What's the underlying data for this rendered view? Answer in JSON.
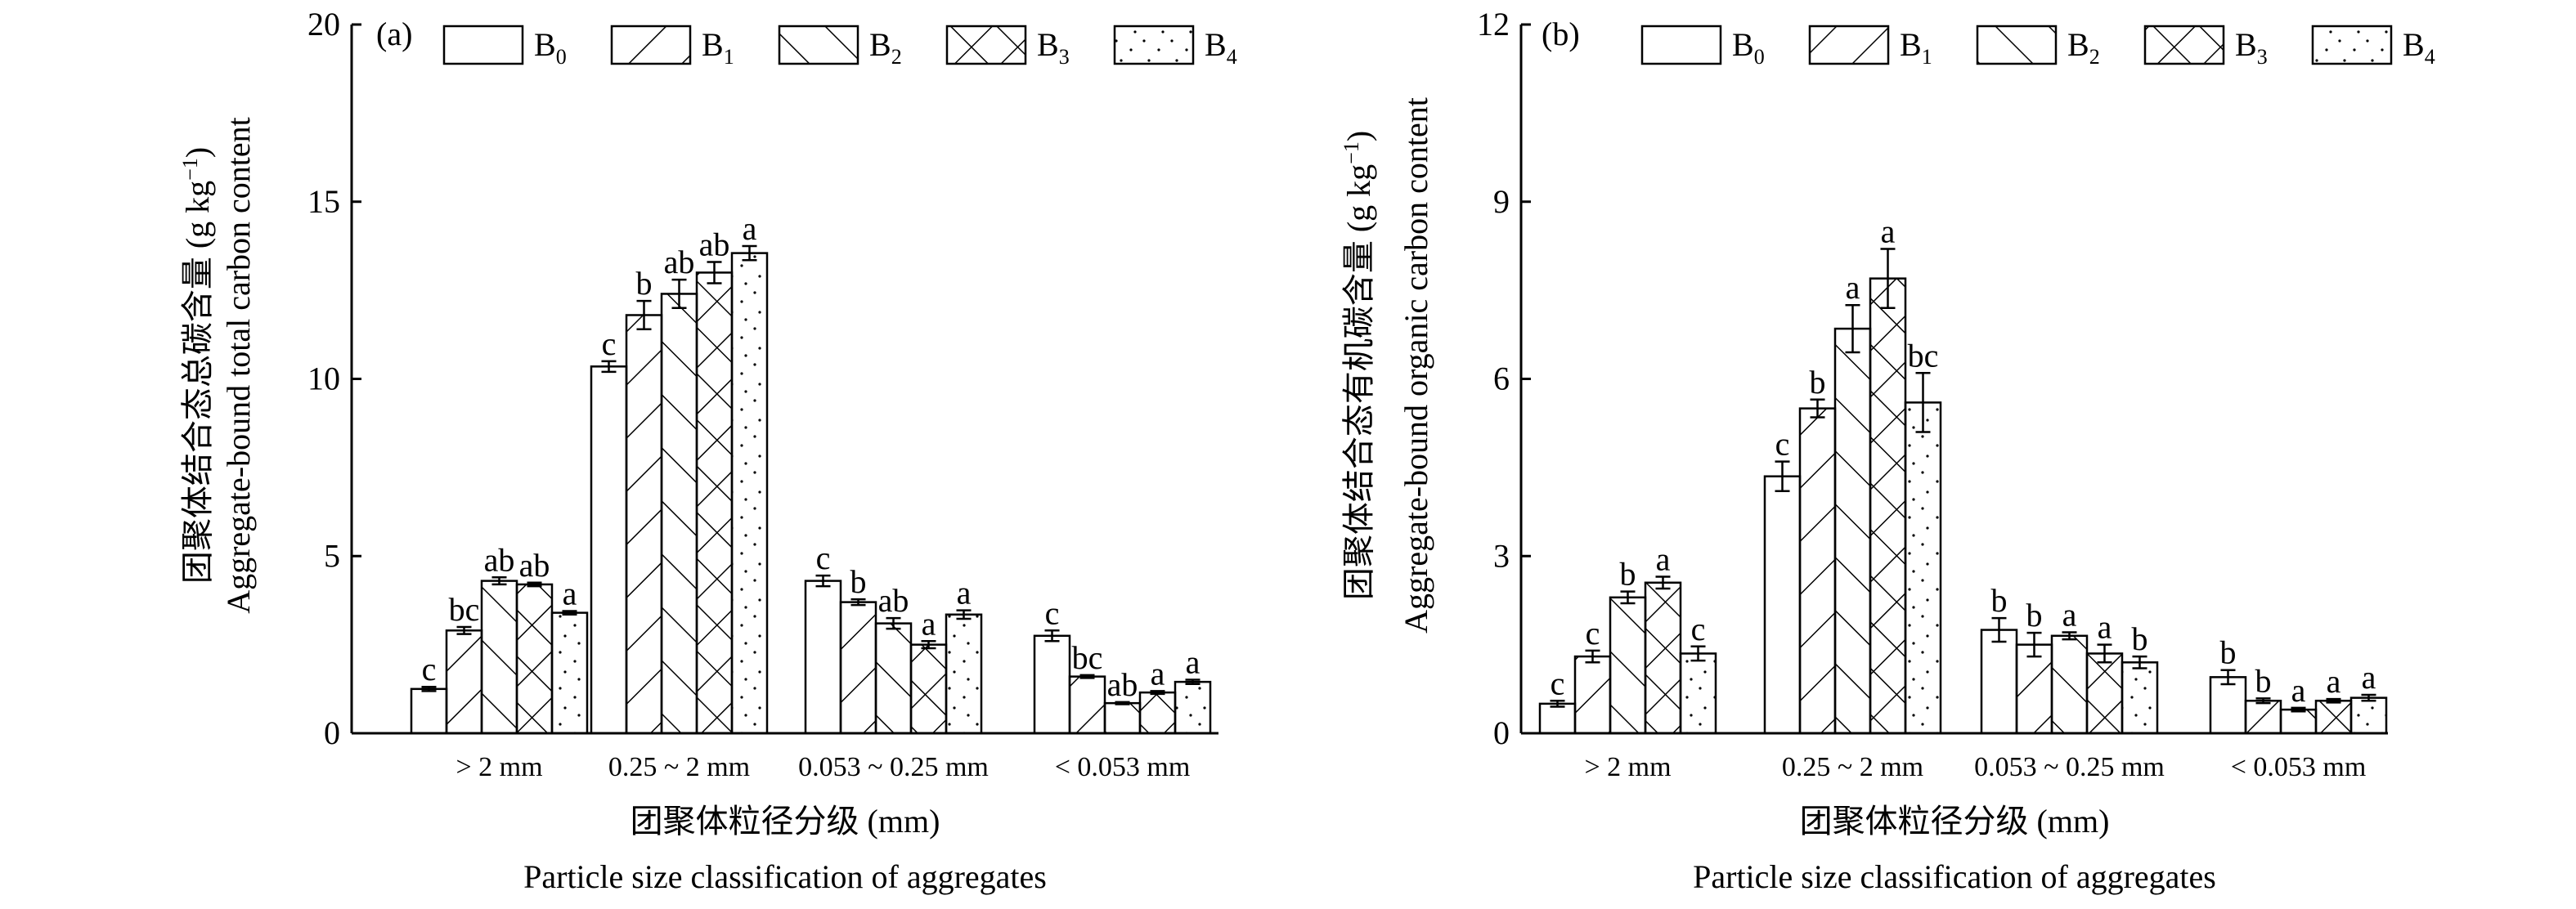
{
  "chart_data": [
    {
      "panel_label": "(a)",
      "type": "bar",
      "ylabel_cn": "团聚体结合态总碳含量 (g kg",
      "ylabel_en": "Aggregate-bound total carbon content",
      "ylabel_unit_sup": "−1",
      "ylabel_unit_close": ")",
      "xlabel_cn": "团聚体粒径分级 (mm)",
      "xlabel_en": "Particle size classification of aggregates",
      "ylim": [
        0,
        20
      ],
      "yticks": [
        "0",
        "5",
        "10",
        "15",
        "20"
      ],
      "categories": [
        "> 2 mm",
        "0.25 ~ 2 mm",
        "0.053 ~ 0.25 mm",
        "< 0.053 mm"
      ],
      "series": [
        {
          "name": "B",
          "sub": "0",
          "pattern": "blank",
          "values": [
            1.25,
            10.35,
            4.3,
            2.75
          ],
          "errors": [
            0.06,
            0.15,
            0.15,
            0.15
          ],
          "letters": [
            "c",
            "c",
            "c",
            "c"
          ]
        },
        {
          "name": "B",
          "sub": "1",
          "pattern": "slash",
          "values": [
            2.9,
            11.8,
            3.7,
            1.6
          ],
          "errors": [
            0.1,
            0.4,
            0.08,
            0.04
          ],
          "letters": [
            "bc",
            "b",
            "b",
            "bc"
          ]
        },
        {
          "name": "B",
          "sub": "2",
          "pattern": "backslash",
          "values": [
            4.3,
            12.4,
            3.1,
            0.85
          ],
          "errors": [
            0.1,
            0.4,
            0.15,
            0.03
          ],
          "letters": [
            "ab",
            "ab",
            "ab",
            "ab"
          ]
        },
        {
          "name": "B",
          "sub": "3",
          "pattern": "cross",
          "values": [
            4.2,
            13.0,
            2.5,
            1.15
          ],
          "errors": [
            0.05,
            0.3,
            0.1,
            0.04
          ],
          "letters": [
            "ab",
            "ab",
            "a",
            "a"
          ]
        },
        {
          "name": "B",
          "sub": "4",
          "pattern": "dots",
          "values": [
            3.4,
            13.55,
            3.35,
            1.45
          ],
          "errors": [
            0.05,
            0.2,
            0.12,
            0.06
          ],
          "letters": [
            "a",
            "a",
            "a",
            "a"
          ]
        }
      ]
    },
    {
      "panel_label": "(b)",
      "type": "bar",
      "ylabel_cn": "团聚体结合态有机碳含量 (g kg",
      "ylabel_en": "Aggregate-bound organic carbon content",
      "ylabel_unit_sup": "−1",
      "ylabel_unit_close": ")",
      "xlabel_cn": "团聚体粒径分级 (mm)",
      "xlabel_en": "Particle size classification of aggregates",
      "ylim": [
        0,
        12
      ],
      "yticks": [
        "0",
        "3",
        "6",
        "9",
        "12"
      ],
      "categories": [
        "> 2 mm",
        "0.25 ~ 2 mm",
        "0.053 ~ 0.25 mm",
        "< 0.053 mm"
      ],
      "series": [
        {
          "name": "B",
          "sub": "0",
          "pattern": "blank",
          "values": [
            0.5,
            4.35,
            1.75,
            0.95
          ],
          "errors": [
            0.05,
            0.25,
            0.2,
            0.12
          ],
          "letters": [
            "c",
            "c",
            "b",
            "b"
          ]
        },
        {
          "name": "B",
          "sub": "1",
          "pattern": "slash",
          "values": [
            1.3,
            5.5,
            1.5,
            0.55
          ],
          "errors": [
            0.1,
            0.15,
            0.2,
            0.04
          ],
          "letters": [
            "c",
            "b",
            "b",
            "b"
          ]
        },
        {
          "name": "B",
          "sub": "2",
          "pattern": "backslash",
          "values": [
            2.3,
            6.85,
            1.65,
            0.4
          ],
          "errors": [
            0.1,
            0.4,
            0.06,
            0.03
          ],
          "letters": [
            "b",
            "a",
            "a",
            "a"
          ]
        },
        {
          "name": "B",
          "sub": "3",
          "pattern": "cross",
          "values": [
            2.55,
            7.7,
            1.35,
            0.55
          ],
          "errors": [
            0.1,
            0.5,
            0.15,
            0.03
          ],
          "letters": [
            "a",
            "a",
            "a",
            "a"
          ]
        },
        {
          "name": "B",
          "sub": "4",
          "pattern": "dots",
          "values": [
            1.35,
            5.6,
            1.2,
            0.6
          ],
          "errors": [
            0.12,
            0.5,
            0.1,
            0.05
          ],
          "letters": [
            "c",
            "bc",
            "b",
            "a"
          ]
        }
      ]
    }
  ]
}
